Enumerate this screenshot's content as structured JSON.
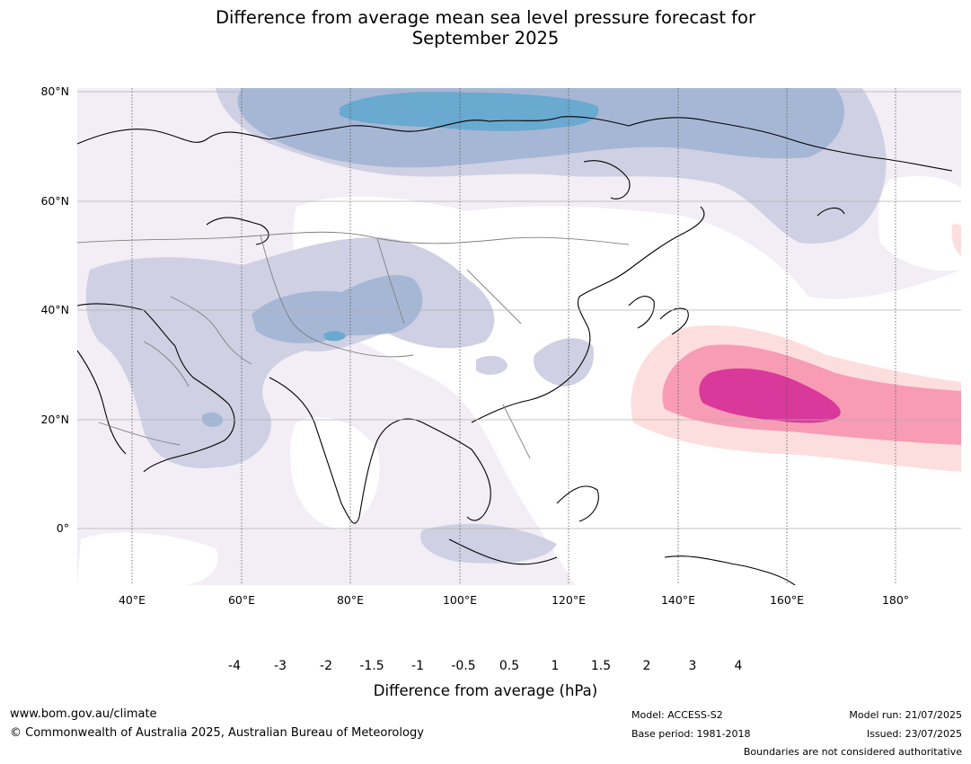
{
  "header": {
    "title_line1": "Difference from average mean sea level pressure forecast for",
    "title_line2": "September 2025"
  },
  "map": {
    "region": "Asia / Western Pacific",
    "lat_ticks": [
      "80°N",
      "60°N",
      "40°N",
      "20°N",
      "0°"
    ],
    "lon_ticks": [
      "40°E",
      "60°E",
      "80°E",
      "100°E",
      "120°E",
      "140°E",
      "160°E",
      "180°"
    ]
  },
  "colorbar": {
    "title": "Difference from average (hPa)",
    "ticks": [
      "-4",
      "-3",
      "-2",
      "-1.5",
      "-1",
      "-0.5",
      "0.5",
      "1",
      "1.5",
      "2",
      "3",
      "4"
    ],
    "colors": [
      "#006d5b",
      "#1a8f96",
      "#6aa9d0",
      "#a6b7d6",
      "#cfd0e3",
      "#f3eef6",
      "#ffffff",
      "#fddede",
      "#f89cb6",
      "#d9399a",
      "#ac0181",
      "#7a0177",
      "#4a0068"
    ]
  },
  "footer": {
    "website": "www.bom.gov.au/climate",
    "copyright": "© Commonwealth of Australia 2025, Australian Bureau of Meteorology",
    "model": "Model: ACCESS-S2",
    "base_period": "Base period: 1981-2018",
    "model_run": "Model run: 21/07/2025",
    "issued": "Issued: 23/07/2025",
    "disclaimer": "Boundaries are not considered authoritative"
  }
}
